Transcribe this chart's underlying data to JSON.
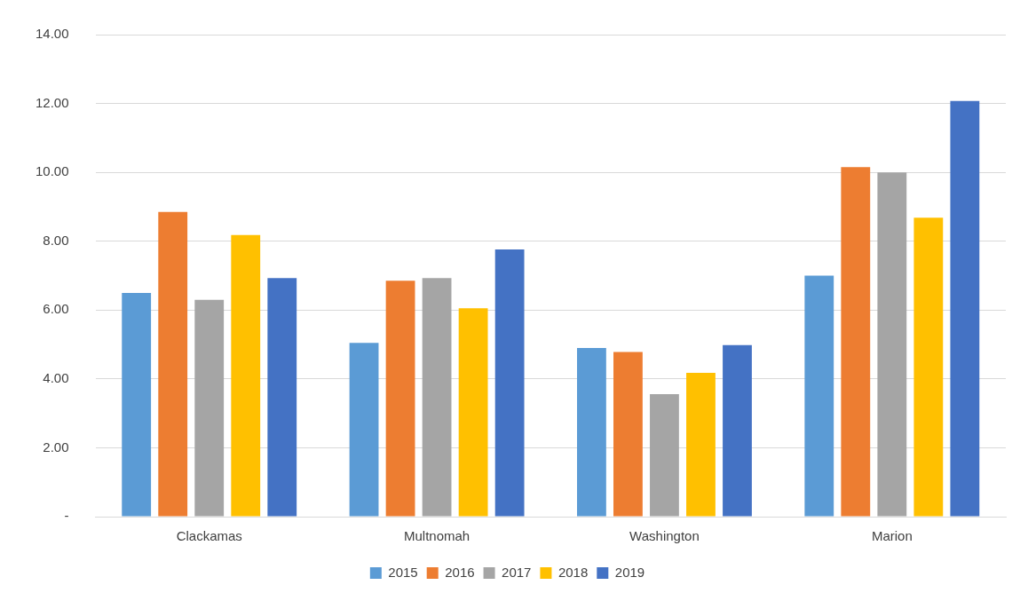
{
  "chart_data": {
    "type": "bar",
    "categories": [
      "Clackamas",
      "Multnomah",
      "Washington",
      "Marion"
    ],
    "series": [
      {
        "name": "2015",
        "color": "#5b9bd5",
        "values": [
          6.5,
          5.05,
          4.9,
          7.0
        ]
      },
      {
        "name": "2016",
        "color": "#ed7d31",
        "values": [
          8.85,
          6.85,
          4.78,
          10.15
        ]
      },
      {
        "name": "2017",
        "color": "#a5a5a5",
        "values": [
          6.3,
          6.93,
          3.56,
          10.0
        ]
      },
      {
        "name": "2018",
        "color": "#ffc000",
        "values": [
          8.18,
          6.05,
          4.18,
          8.68
        ]
      },
      {
        "name": "2019",
        "color": "#4472c4",
        "values": [
          6.93,
          7.76,
          4.98,
          12.07
        ]
      }
    ],
    "ylim": [
      0,
      14
    ],
    "yticks": [
      {
        "value": 0,
        "label": "-"
      },
      {
        "value": 2,
        "label": "2.00"
      },
      {
        "value": 4,
        "label": "4.00"
      },
      {
        "value": 6,
        "label": "6.00"
      },
      {
        "value": 8,
        "label": "8.00"
      },
      {
        "value": 10,
        "label": "10.00"
      },
      {
        "value": 12,
        "label": "12.00"
      },
      {
        "value": 14,
        "label": "14.00"
      }
    ],
    "grid": "y",
    "legend": "bottom"
  }
}
